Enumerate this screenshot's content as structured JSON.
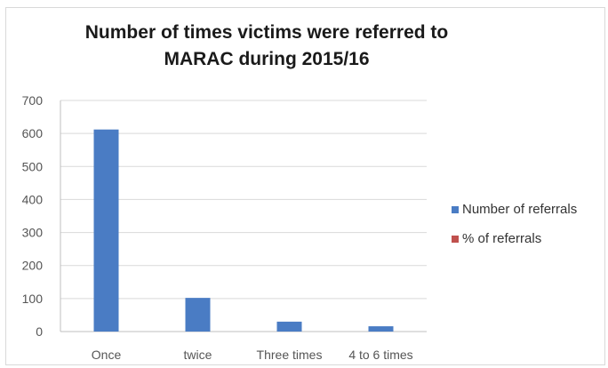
{
  "chart_data": {
    "type": "bar",
    "title_lines": [
      "Number of times victims were referred to",
      "MARAC during 2015/16"
    ],
    "categories": [
      "Once",
      "twice",
      "Three times",
      "4 to 6 times"
    ],
    "series": [
      {
        "name": "Number of referrals",
        "values": [
          612,
          102,
          30,
          16
        ],
        "color": "#4a7cc4"
      },
      {
        "name": "% of referrals",
        "values": [
          0,
          0,
          0,
          0
        ],
        "color": "#c0504d"
      }
    ],
    "ylim": [
      0,
      700
    ],
    "yticks": [
      0,
      100,
      200,
      300,
      400,
      500,
      600,
      700
    ],
    "grid": true,
    "legend_position": "right"
  }
}
